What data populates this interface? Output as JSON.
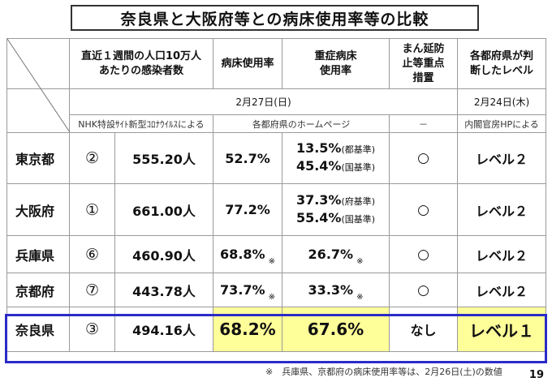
{
  "title": "奈良県と大阪府等との病床使用率等の比較",
  "headers": {
    "infections": "直近１週間の人口10万人あたりの感染者数",
    "bed_rate": "病床使用率",
    "severe_bed_rate": "重症病床使用率",
    "priority_measures": "まん延防止等重点措置",
    "level": "各都府県が判断したレベル"
  },
  "dates": {
    "main": "2月27日(日)",
    "level": "2月24日(木)"
  },
  "sources": {
    "infections": "NHK特設ｻｲﾄ新型ｺﾛﾅｳｲﾙｽによる",
    "beds": "各都府県のホームページ",
    "measures": "－",
    "level": "内閣官房HPによる"
  },
  "rows": [
    {
      "pref": "東京都",
      "rank": "②",
      "infections": "555.20人",
      "bed": "52.7%",
      "bed_mark": "",
      "severe1": "13.5%",
      "severe1_note": "(都基準)",
      "severe2": "45.4%",
      "severe2_note": "(国基準)",
      "severe_mark": "",
      "measures": "○",
      "level": "レベル２"
    },
    {
      "pref": "大阪府",
      "rank": "①",
      "infections": "661.00人",
      "bed": "77.2%",
      "bed_mark": "",
      "severe1": "37.3%",
      "severe1_note": "(府基準)",
      "severe2": "55.4%",
      "severe2_note": "(国基準)",
      "severe_mark": "",
      "measures": "○",
      "level": "レベル２"
    },
    {
      "pref": "兵庫県",
      "rank": "⑥",
      "infections": "460.90人",
      "bed": "68.8%",
      "bed_mark": "※",
      "severe1": "26.7%",
      "severe_mark": "※",
      "measures": "○",
      "level": "レベル２"
    },
    {
      "pref": "京都府",
      "rank": "⑦",
      "infections": "443.78人",
      "bed": "73.7%",
      "bed_mark": "※",
      "severe1": "33.3%",
      "severe_mark": "※",
      "measures": "○",
      "level": "レベル２"
    }
  ],
  "nara": {
    "pref": "奈良県",
    "rank": "③",
    "infections": "494.16人",
    "bed": "68.2%",
    "severe": "67.6%",
    "measures": "なし",
    "level": "レベル１"
  },
  "footnote": "※　兵庫県、京都府の病床使用率等は、2月26日(土)の数値",
  "page_number": "19",
  "colors": {
    "highlight": "#ffff99",
    "nara_border": "#2b2bc8"
  }
}
